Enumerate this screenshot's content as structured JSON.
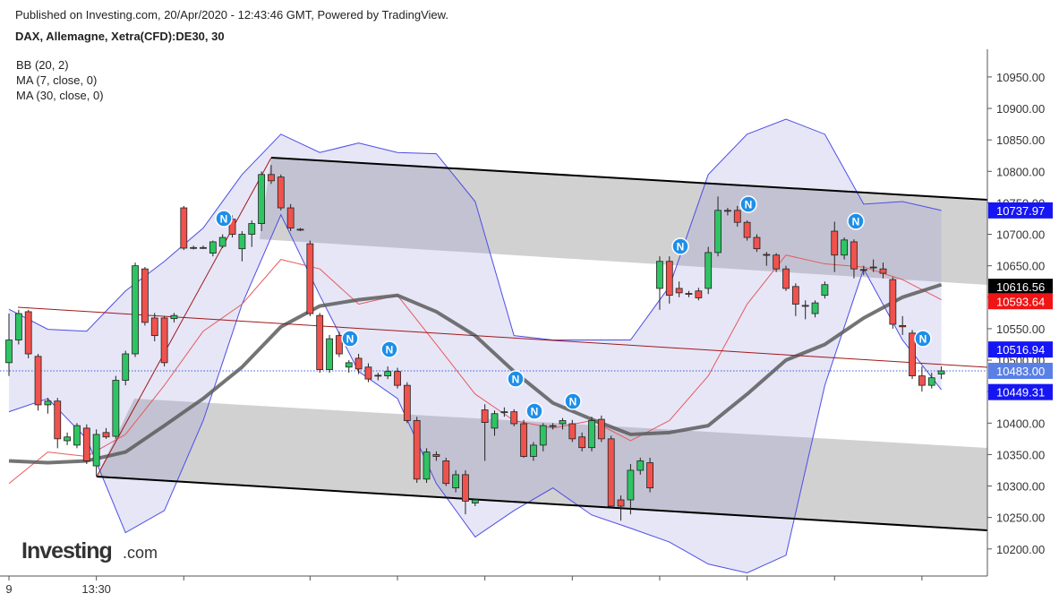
{
  "chart_data": {
    "type": "candlestick",
    "published": "Published on Investing.com, 20/Apr/2020 - 12:43:46 GMT, Powered by TradingView.",
    "title": "DAX, Allemagne, Xetra(CFD):DE30, 30",
    "logo": {
      "name": "Investing",
      "suffix": ".com"
    },
    "news_label": "N",
    "up_color": "#2fc463",
    "down_color": "#f0524d",
    "x": [
      "9",
      null,
      null,
      null,
      null,
      null,
      null,
      null,
      null,
      "13:30",
      null,
      null,
      null,
      null,
      null,
      null,
      null,
      null,
      null,
      null,
      null,
      null,
      null,
      null,
      null,
      null,
      null,
      null,
      null,
      null,
      null,
      null,
      null,
      null,
      null,
      null,
      null,
      null,
      null,
      null,
      null,
      null,
      null,
      null,
      null,
      null,
      null,
      null,
      null,
      null,
      null,
      null,
      null,
      null,
      null,
      null,
      null,
      null,
      null,
      null,
      null,
      null,
      null,
      null,
      null,
      null,
      null,
      null,
      null,
      null,
      null,
      null,
      null,
      null,
      null,
      null,
      null,
      null,
      null,
      null,
      null,
      null,
      null,
      null,
      null,
      null,
      null,
      null,
      null,
      null,
      null,
      null,
      null,
      null,
      null,
      null,
      null
    ],
    "open": [
      10496,
      10532,
      10577,
      10506,
      10429,
      10435,
      10372,
      10365,
      10392,
      10332,
      10385,
      10379,
      10468,
      10510,
      10645,
      10567,
      10567,
      10566,
      10742,
      10678,
      10679,
      10670,
      10681,
      10724,
      10677,
      10700,
      10717,
      10795,
      10791,
      10742,
      10708,
      10685,
      10571,
      10485,
      10539,
      10489,
      10503,
      10489,
      10476,
      10475,
      10482,
      10460,
      10404,
      10311,
      10350,
      10340,
      10297,
      10318,
      10273,
      10421,
      10392,
      10418,
      10418,
      10399,
      10347,
      10365,
      10396,
      10399,
      10399,
      10378,
      10361,
      10406,
      10375,
      10278,
      10278,
      10325,
      10337,
      10614,
      10657,
      10614,
      10606,
      10610,
      10614,
      10671,
      10738,
      10738,
      10719,
      10695,
      10668,
      10667,
      10645,
      10617,
      10587,
      10574,
      10603,
      10705,
      10667,
      10688,
      10644,
      10648,
      10645,
      10628,
      10555,
      10543,
      10475,
      10460,
      10478
    ],
    "high": [
      10574,
      10580,
      10580,
      10510,
      10440,
      10440,
      10385,
      10400,
      10398,
      10390,
      10392,
      10475,
      10515,
      10655,
      10648,
      10575,
      10570,
      10575,
      10745,
      10682,
      10682,
      10690,
      10700,
      10730,
      10705,
      10722,
      10800,
      10810,
      10795,
      10748,
      10710,
      10690,
      10575,
      10540,
      10545,
      10500,
      10510,
      10495,
      10480,
      10490,
      10488,
      10465,
      10410,
      10360,
      10355,
      10345,
      10325,
      10325,
      10280,
      10430,
      10420,
      10425,
      10422,
      10405,
      10370,
      10400,
      10400,
      10408,
      10405,
      10385,
      10410,
      10412,
      10380,
      10285,
      10335,
      10345,
      10345,
      10665,
      10665,
      10625,
      10610,
      10615,
      10680,
      10760,
      10742,
      10745,
      10722,
      10700,
      10672,
      10670,
      10650,
      10622,
      10595,
      10595,
      10625,
      10720,
      10695,
      10692,
      10650,
      10660,
      10655,
      10632,
      10570,
      10548,
      10490,
      10480,
      10490
    ],
    "low": [
      10475,
      10525,
      10503,
      10420,
      10415,
      10360,
      10365,
      10360,
      10335,
      10315,
      10375,
      10375,
      10460,
      10505,
      10555,
      10530,
      10490,
      10560,
      10675,
      10676,
      10677,
      10665,
      10678,
      10695,
      10657,
      10680,
      10705,
      10780,
      10738,
      10705,
      10705,
      10570,
      10480,
      10480,
      10505,
      10480,
      10478,
      10465,
      10468,
      10470,
      10455,
      10400,
      10305,
      10305,
      10340,
      10300,
      10290,
      10255,
      10268,
      10340,
      10380,
      10410,
      10395,
      10345,
      10340,
      10355,
      10390,
      10390,
      10370,
      10355,
      10355,
      10370,
      10265,
      10245,
      10255,
      10318,
      10290,
      10580,
      10590,
      10600,
      10600,
      10595,
      10605,
      10665,
      10730,
      10712,
      10690,
      10672,
      10650,
      10640,
      10610,
      10570,
      10565,
      10568,
      10598,
      10640,
      10660,
      10630,
      10635,
      10640,
      10630,
      10550,
      10540,
      10470,
      10450,
      10455,
      10470
    ],
    "close": [
      10532,
      10574,
      10510,
      10429,
      10435,
      10375,
      10378,
      10396,
      10340,
      10382,
      10378,
      10468,
      10510,
      10650,
      10560,
      10539,
      10496,
      10571,
      10678,
      10679,
      10678,
      10688,
      10695,
      10700,
      10700,
      10717,
      10795,
      10785,
      10742,
      10710,
      10707,
      10574,
      10485,
      10534,
      10510,
      10496,
      10486,
      10470,
      10475,
      10482,
      10460,
      10404,
      10311,
      10354,
      10347,
      10304,
      10318,
      10276,
      10278,
      10401,
      10415,
      10418,
      10399,
      10347,
      10365,
      10396,
      10395,
      10404,
      10375,
      10361,
      10404,
      10375,
      10268,
      10268,
      10325,
      10340,
      10297,
      10657,
      10603,
      10607,
      10605,
      10599,
      10671,
      10738,
      10737,
      10719,
      10695,
      10677,
      10667,
      10645,
      10614,
      10589,
      10586,
      10591,
      10620,
      10667,
      10691,
      10645,
      10643,
      10648,
      10638,
      10557,
      10553,
      10475,
      10460,
      10472,
      10483
    ],
    "overlays": [
      {
        "name": "BB (20, 2)",
        "color": "#4d4de6",
        "x": [
          0,
          4,
          8,
          12,
          16,
          20,
          24,
          28,
          32,
          36,
          40,
          44,
          48,
          52,
          56,
          60,
          64,
          68,
          72,
          76,
          80,
          84,
          88,
          92,
          96
        ],
        "upper": [
          10581,
          10549,
          10546,
          10610,
          10657,
          10710,
          10795,
          10859,
          10830,
          10845,
          10830,
          10828,
          10752,
          10539,
          10532,
          10532,
          10532,
          10617,
          10795,
          10859,
          10883,
          10859,
          10748,
          10752,
          10738
        ],
        "lower": [
          10418,
          10439,
          10375,
          10226,
          10261,
          10404,
          10589,
          10731,
          10603,
          10482,
          10439,
          10304,
          10219,
          10261,
          10297,
          10254,
          10233,
          10211,
          10176,
          10162,
          10190,
          10460,
          10645,
          10532,
          10453
        ]
      },
      {
        "name": "MA (7, close, 0)",
        "color": "#e55b5b",
        "x": [
          0,
          4,
          8,
          12,
          16,
          20,
          24,
          28,
          32,
          36,
          40,
          44,
          48,
          52,
          56,
          60,
          64,
          68,
          72,
          76,
          80,
          84,
          88,
          92,
          96
        ],
        "values": [
          10304,
          10354,
          10347,
          10382,
          10460,
          10546,
          10589,
          10660,
          10645,
          10589,
          10603,
          10525,
          10446,
          10404,
          10392,
          10404,
          10372,
          10404,
          10475,
          10589,
          10667,
          10653,
          10648,
          10628,
          10596
        ]
      },
      {
        "name": "MA (30, close, 0)",
        "color": "#5c5c5c",
        "x": [
          0,
          4,
          8,
          12,
          16,
          20,
          24,
          28,
          32,
          36,
          40,
          44,
          48,
          52,
          56,
          60,
          64,
          68,
          72,
          76,
          80,
          84,
          88,
          92,
          96
        ],
        "values": [
          10340,
          10337,
          10340,
          10354,
          10396,
          10439,
          10489,
          10553,
          10586,
          10596,
          10603,
          10577,
          10539,
          10482,
          10432,
          10406,
          10382,
          10385,
          10396,
          10446,
          10500,
          10525,
          10567,
          10600,
          10620
        ]
      }
    ],
    "last_price": 10483,
    "price_labels": [
      {
        "value": 10737.97,
        "label": "10737.97",
        "color": "#1616f5"
      },
      {
        "value": 10616.56,
        "label": "10616.56",
        "color": "#000000"
      },
      {
        "value": 10593.64,
        "label": "10593.64",
        "color": "#f01414"
      },
      {
        "value": 10516.94,
        "label": "10516.94",
        "color": "#1616f5"
      },
      {
        "value": 10483,
        "label": "10483.00",
        "color": "#5a80e6"
      },
      {
        "value": 10449.31,
        "label": "10449.31",
        "color": "#1616f5"
      }
    ],
    "ylim": [
      10157,
      10994
    ],
    "yticks": [
      {
        "value": 10200,
        "label": "10200.00"
      },
      {
        "value": 10250,
        "label": "10250.00"
      },
      {
        "value": 10300,
        "label": "10300.00"
      },
      {
        "value": 10350,
        "label": "10350.00"
      },
      {
        "value": 10400,
        "label": "10400.00"
      },
      {
        "value": 10450,
        "label": "10450.00"
      },
      {
        "value": 10500,
        "label": "10500.00"
      },
      {
        "value": 10550,
        "label": "10550.00"
      },
      {
        "value": 10600,
        "label": "10600.00"
      },
      {
        "value": 10650,
        "label": "10650.00"
      },
      {
        "value": 10700,
        "label": "10700.00"
      },
      {
        "value": 10750,
        "label": "10750.00"
      },
      {
        "value": 10800,
        "label": "10800.00"
      },
      {
        "value": 10850,
        "label": "10850.00"
      },
      {
        "value": 10900,
        "label": "10900.00"
      },
      {
        "value": 10950,
        "label": "10950.00"
      }
    ]
  }
}
